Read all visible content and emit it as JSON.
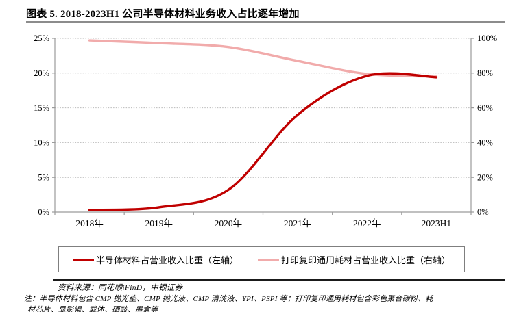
{
  "header": {
    "title": "图表 5. 2018-2023H1 公司半导体材料业务收入占比逐年增加"
  },
  "chart_data": {
    "type": "line",
    "categories": [
      "2018年",
      "2019年",
      "2020年",
      "2021年",
      "2022年",
      "2023H1"
    ],
    "series": [
      {
        "name": "半导体材料占营业收入比重（左轴）",
        "axis": "left",
        "color": "#c00000",
        "values": [
          0.3,
          0.7,
          3.2,
          14.0,
          19.6,
          19.4
        ]
      },
      {
        "name": "打印复印通用耗材占营业收入比重（右轴）",
        "axis": "right",
        "color": "#f1abab",
        "values": [
          98.8,
          97.2,
          95.0,
          87.0,
          79.5,
          78.0
        ]
      }
    ],
    "left_axis": {
      "min": 0,
      "max": 25,
      "ticks": [
        "0%",
        "5%",
        "10%",
        "15%",
        "20%",
        "25%"
      ]
    },
    "right_axis": {
      "min": 0,
      "max": 100,
      "ticks": [
        "0%",
        "20%",
        "40%",
        "60%",
        "80%",
        "100%"
      ]
    },
    "grid": "horizontal-dotted",
    "legend_position": "bottom-box"
  },
  "footer": {
    "source": "资料来源：同花顺iFinD，中银证券",
    "note_line1": "注：半导体材料包含 CMP 抛光垫、CMP 抛光液、CMP 清洗液、YPI、PSPI 等；打印复印通用耗材包含彩色聚合碳粉、耗",
    "note_line2": "材芯片、显影辊、载体、硒鼓、墨盒等"
  },
  "colors": {
    "axis": "#9b9b9b",
    "gridline": "#b9b9b9",
    "title_rule": "#8c8c8c",
    "footer_rule": "#1a1a1a"
  }
}
